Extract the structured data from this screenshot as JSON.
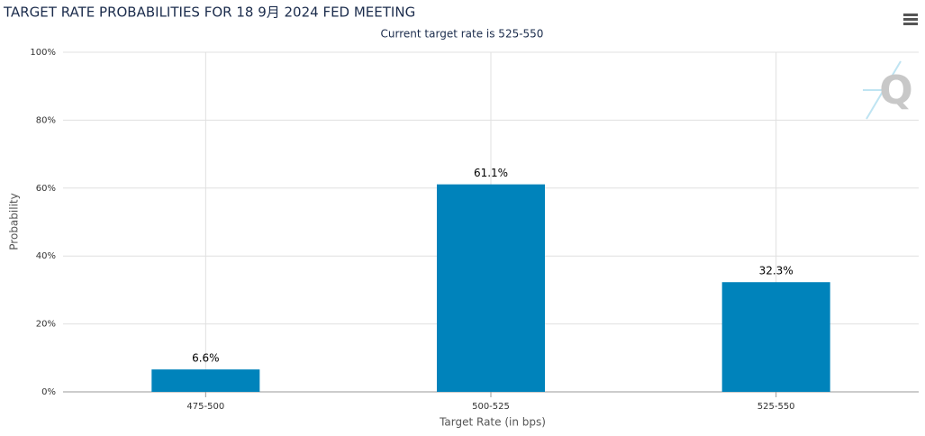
{
  "chart_data": {
    "type": "bar",
    "title": "TARGET RATE PROBABILITIES FOR 18 9月 2024 FED MEETING",
    "subtitle": "Current target rate is 525-550",
    "y_label": "Probability",
    "x_label": "Target Rate (in bps)",
    "categories": [
      "475-500",
      "500-525",
      "525-550"
    ],
    "values": [
      6.6,
      61.1,
      32.3
    ],
    "value_labels": [
      "6.6%",
      "61.1%",
      "32.3%"
    ],
    "color": "#0083bb",
    "ylim": [
      0,
      100
    ],
    "yticks": [
      {
        "value": 0,
        "label": "0%"
      },
      {
        "value": 20,
        "label": "20%"
      },
      {
        "value": 40,
        "label": "40%"
      },
      {
        "value": 60,
        "label": "60%"
      },
      {
        "value": 80,
        "label": "80%"
      },
      {
        "value": 100,
        "label": "100%"
      }
    ],
    "grid": true
  }
}
